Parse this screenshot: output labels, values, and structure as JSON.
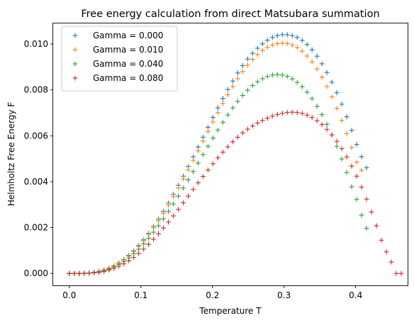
{
  "chart_data": {
    "type": "scatter",
    "title": "Free energy calculation from direct Matsubara summation",
    "xlabel": "Temperature T",
    "ylabel": "Helmholtz Free Energy F",
    "xlim": [
      -0.0226,
      0.4726
    ],
    "ylim": [
      -0.00052,
      0.0109
    ],
    "xticks": [
      0.0,
      0.1,
      0.2,
      0.3,
      0.4
    ],
    "xtick_labels": [
      "0.0",
      "0.1",
      "0.2",
      "0.3",
      "0.4"
    ],
    "yticks": [
      0.0,
      0.002,
      0.004,
      0.006,
      0.008,
      0.01
    ],
    "ytick_labels": [
      "0.000",
      "0.002",
      "0.004",
      "0.006",
      "0.008",
      "0.010"
    ],
    "grid": false,
    "legend": "upper-left",
    "marker": "+",
    "x_start": 0.0,
    "x_step": 0.00692,
    "colors": [
      "#1f77b4",
      "#ff7f0e",
      "#2ca02c",
      "#d62728"
    ],
    "series": [
      {
        "name": "Gamma = 0.000",
        "values": [
          0.0,
          0.0,
          0.0,
          1e-05,
          2e-05,
          5e-05,
          9e-05,
          0.00015,
          0.00023,
          0.00033,
          0.00046,
          0.00061,
          0.00079,
          0.00099,
          0.00122,
          0.00147,
          0.00175,
          0.00205,
          0.00237,
          0.00271,
          0.00307,
          0.00345,
          0.00384,
          0.00424,
          0.00466,
          0.00508,
          0.00551,
          0.00594,
          0.00637,
          0.0068,
          0.00722,
          0.00763,
          0.00802,
          0.00839,
          0.00874,
          0.00906,
          0.00935,
          0.0096,
          0.00982,
          0.01001,
          0.01017,
          0.01029,
          0.01037,
          0.01041,
          0.01041,
          0.01037,
          0.01029,
          0.01016,
          0.00998,
          0.00975,
          0.00947,
          0.00914,
          0.00876,
          0.00834,
          0.00788,
          0.00738,
          0.00683,
          0.00624,
          0.00562,
          0.00509,
          0.00461
        ]
      },
      {
        "name": "Gamma = 0.010",
        "values": [
          0.0,
          0.0,
          0.0,
          1e-05,
          2e-05,
          4e-05,
          8e-05,
          0.00014,
          0.00022,
          0.00032,
          0.00044,
          0.00059,
          0.00076,
          0.00096,
          0.00118,
          0.00143,
          0.0017,
          0.00199,
          0.0023,
          0.00263,
          0.00298,
          0.00335,
          0.00373,
          0.00412,
          0.00452,
          0.00493,
          0.00535,
          0.00577,
          0.00619,
          0.0066,
          0.00701,
          0.00741,
          0.00779,
          0.00815,
          0.00849,
          0.0088,
          0.00908,
          0.00933,
          0.00954,
          0.00972,
          0.00986,
          0.00996,
          0.01002,
          0.01004,
          0.01002,
          0.00996,
          0.00985,
          0.00969,
          0.00948,
          0.00922,
          0.00891,
          0.00856,
          0.00815,
          0.0077,
          0.0072,
          0.00667,
          0.0061,
          0.00549,
          0.00485,
          0.0045
        ]
      },
      {
        "name": "Gamma = 0.040",
        "values": [
          0.0,
          0.0,
          0.0,
          1e-05,
          2e-05,
          4e-05,
          7e-05,
          0.00012,
          0.00019,
          0.00028,
          0.00039,
          0.00052,
          0.00068,
          0.00086,
          0.00106,
          0.00129,
          0.00153,
          0.0018,
          0.00208,
          0.00238,
          0.0027,
          0.00303,
          0.00337,
          0.00372,
          0.00408,
          0.00444,
          0.00481,
          0.00518,
          0.00554,
          0.0059,
          0.00625,
          0.00659,
          0.00691,
          0.00722,
          0.0075,
          0.00776,
          0.00799,
          0.00819,
          0.00836,
          0.00849,
          0.00859,
          0.00865,
          0.00867,
          0.00865,
          0.00859,
          0.00848,
          0.00833,
          0.00814,
          0.0079,
          0.00762,
          0.00729,
          0.00692,
          0.0065,
          0.00604,
          0.00554,
          0.00499,
          0.0044,
          0.00378,
          0.00323,
          0.00254,
          0.00197
        ]
      },
      {
        "name": "Gamma = 0.080",
        "values": [
          0.0,
          0.0,
          0.0,
          0.0,
          1e-05,
          3e-05,
          5e-05,
          9e-05,
          0.00015,
          0.00022,
          0.00031,
          0.00042,
          0.00055,
          0.0007,
          0.00087,
          0.00106,
          0.00127,
          0.00149,
          0.00173,
          0.00198,
          0.00224,
          0.00251,
          0.00279,
          0.00308,
          0.00337,
          0.00366,
          0.00395,
          0.00423,
          0.00451,
          0.00478,
          0.00504,
          0.00529,
          0.00552,
          0.00574,
          0.00594,
          0.00613,
          0.00629,
          0.00643,
          0.00656,
          0.00667,
          0.00677,
          0.00686,
          0.00693,
          0.00698,
          0.00702,
          0.00703,
          0.00702,
          0.00698,
          0.0069,
          0.0068,
          0.00666,
          0.00649,
          0.00628,
          0.00604,
          0.00576,
          0.00544,
          0.00508,
          0.00468,
          0.00424,
          0.00376,
          0.00324,
          0.00268,
          0.00208,
          0.00145,
          0.00094,
          0.0005,
          0.0,
          0.0
        ]
      }
    ]
  }
}
